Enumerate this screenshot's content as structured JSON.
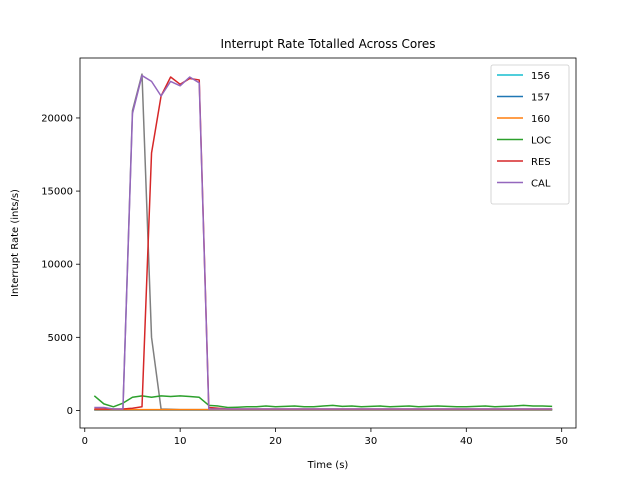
{
  "chart_data": {
    "type": "line",
    "title": "Interrupt Rate Totalled Across Cores",
    "xlabel": "Time (s)",
    "ylabel": "Interrupt Rate (ints/s)",
    "xlim": [
      -0.5,
      51.5
    ],
    "ylim": [
      -1200,
      24100
    ],
    "xticks": [
      0,
      10,
      20,
      30,
      40,
      50
    ],
    "yticks": [
      0,
      5000,
      10000,
      15000,
      20000
    ],
    "grid": false,
    "legend_position": "top-right",
    "x": [
      1,
      2,
      3,
      4,
      5,
      6,
      7,
      8,
      9,
      10,
      11,
      12,
      13,
      14,
      15,
      16,
      17,
      18,
      19,
      20,
      21,
      22,
      23,
      24,
      25,
      26,
      27,
      28,
      29,
      30,
      31,
      32,
      33,
      34,
      35,
      36,
      37,
      38,
      39,
      40,
      41,
      42,
      43,
      44,
      45,
      46,
      47,
      48,
      49
    ],
    "series": [
      {
        "name": "",
        "color": "#7f7f7f",
        "legend": false,
        "values": [
          50,
          50,
          50,
          50,
          20500,
          23000,
          5000,
          100,
          80,
          60,
          60,
          60,
          60,
          60,
          60,
          60,
          60,
          60,
          60,
          60,
          60,
          60,
          60,
          60,
          60,
          60,
          60,
          60,
          60,
          60,
          60,
          60,
          60,
          60,
          60,
          60,
          60,
          60,
          60,
          60,
          60,
          60,
          60,
          60,
          60,
          60,
          60,
          60,
          60
        ]
      },
      {
        "name": "156",
        "color": "#17becf",
        "legend": true,
        "values": [
          40,
          40,
          40,
          40,
          40,
          40,
          40,
          40,
          40,
          40,
          40,
          40,
          40,
          40,
          40,
          40,
          40,
          40,
          40,
          40,
          40,
          40,
          40,
          40,
          40,
          40,
          40,
          40,
          40,
          40,
          40,
          40,
          40,
          40,
          40,
          40,
          40,
          40,
          40,
          40,
          40,
          40,
          40,
          40,
          40,
          40,
          40,
          40,
          40
        ]
      },
      {
        "name": "157",
        "color": "#1f77b4",
        "legend": true,
        "values": [
          30,
          30,
          30,
          30,
          30,
          30,
          30,
          30,
          30,
          30,
          30,
          30,
          30,
          30,
          30,
          30,
          30,
          30,
          30,
          30,
          30,
          30,
          30,
          30,
          30,
          30,
          30,
          30,
          30,
          30,
          30,
          30,
          30,
          30,
          30,
          30,
          30,
          30,
          30,
          30,
          30,
          30,
          30,
          30,
          30,
          30,
          30,
          30,
          30
        ]
      },
      {
        "name": "160",
        "color": "#ff7f0e",
        "legend": true,
        "values": [
          60,
          60,
          60,
          60,
          60,
          60,
          60,
          60,
          60,
          60,
          60,
          60,
          60,
          60,
          60,
          60,
          60,
          60,
          60,
          60,
          60,
          60,
          60,
          60,
          60,
          60,
          60,
          60,
          60,
          60,
          60,
          60,
          60,
          60,
          60,
          60,
          60,
          60,
          60,
          60,
          60,
          60,
          60,
          60,
          60,
          60,
          60,
          60,
          60
        ]
      },
      {
        "name": "LOC",
        "color": "#2ca02c",
        "legend": true,
        "values": [
          1000,
          450,
          250,
          500,
          900,
          1000,
          900,
          1000,
          950,
          1000,
          950,
          900,
          350,
          300,
          200,
          220,
          250,
          250,
          300,
          250,
          280,
          300,
          250,
          250,
          300,
          350,
          280,
          300,
          250,
          280,
          300,
          250,
          280,
          300,
          250,
          280,
          300,
          280,
          250,
          250,
          280,
          300,
          250,
          280,
          300,
          350,
          300,
          300,
          280
        ]
      },
      {
        "name": "RES",
        "color": "#d62728",
        "legend": true,
        "values": [
          100,
          100,
          100,
          100,
          150,
          250,
          17600,
          21500,
          22800,
          22300,
          22700,
          22600,
          200,
          150,
          100,
          100,
          100,
          100,
          100,
          100,
          100,
          100,
          100,
          100,
          100,
          100,
          100,
          100,
          100,
          100,
          100,
          100,
          100,
          100,
          100,
          100,
          100,
          100,
          100,
          100,
          100,
          100,
          100,
          100,
          100,
          100,
          100,
          100,
          100
        ]
      },
      {
        "name": "CAL",
        "color": "#9467bd",
        "legend": true,
        "values": [
          200,
          200,
          100,
          100,
          20300,
          22900,
          22500,
          21500,
          22500,
          22200,
          22800,
          22400,
          100,
          100,
          100,
          100,
          100,
          100,
          100,
          100,
          100,
          100,
          100,
          100,
          100,
          100,
          100,
          100,
          100,
          100,
          100,
          100,
          100,
          100,
          100,
          100,
          100,
          100,
          100,
          100,
          100,
          100,
          100,
          100,
          100,
          100,
          100,
          100,
          100
        ]
      }
    ]
  }
}
